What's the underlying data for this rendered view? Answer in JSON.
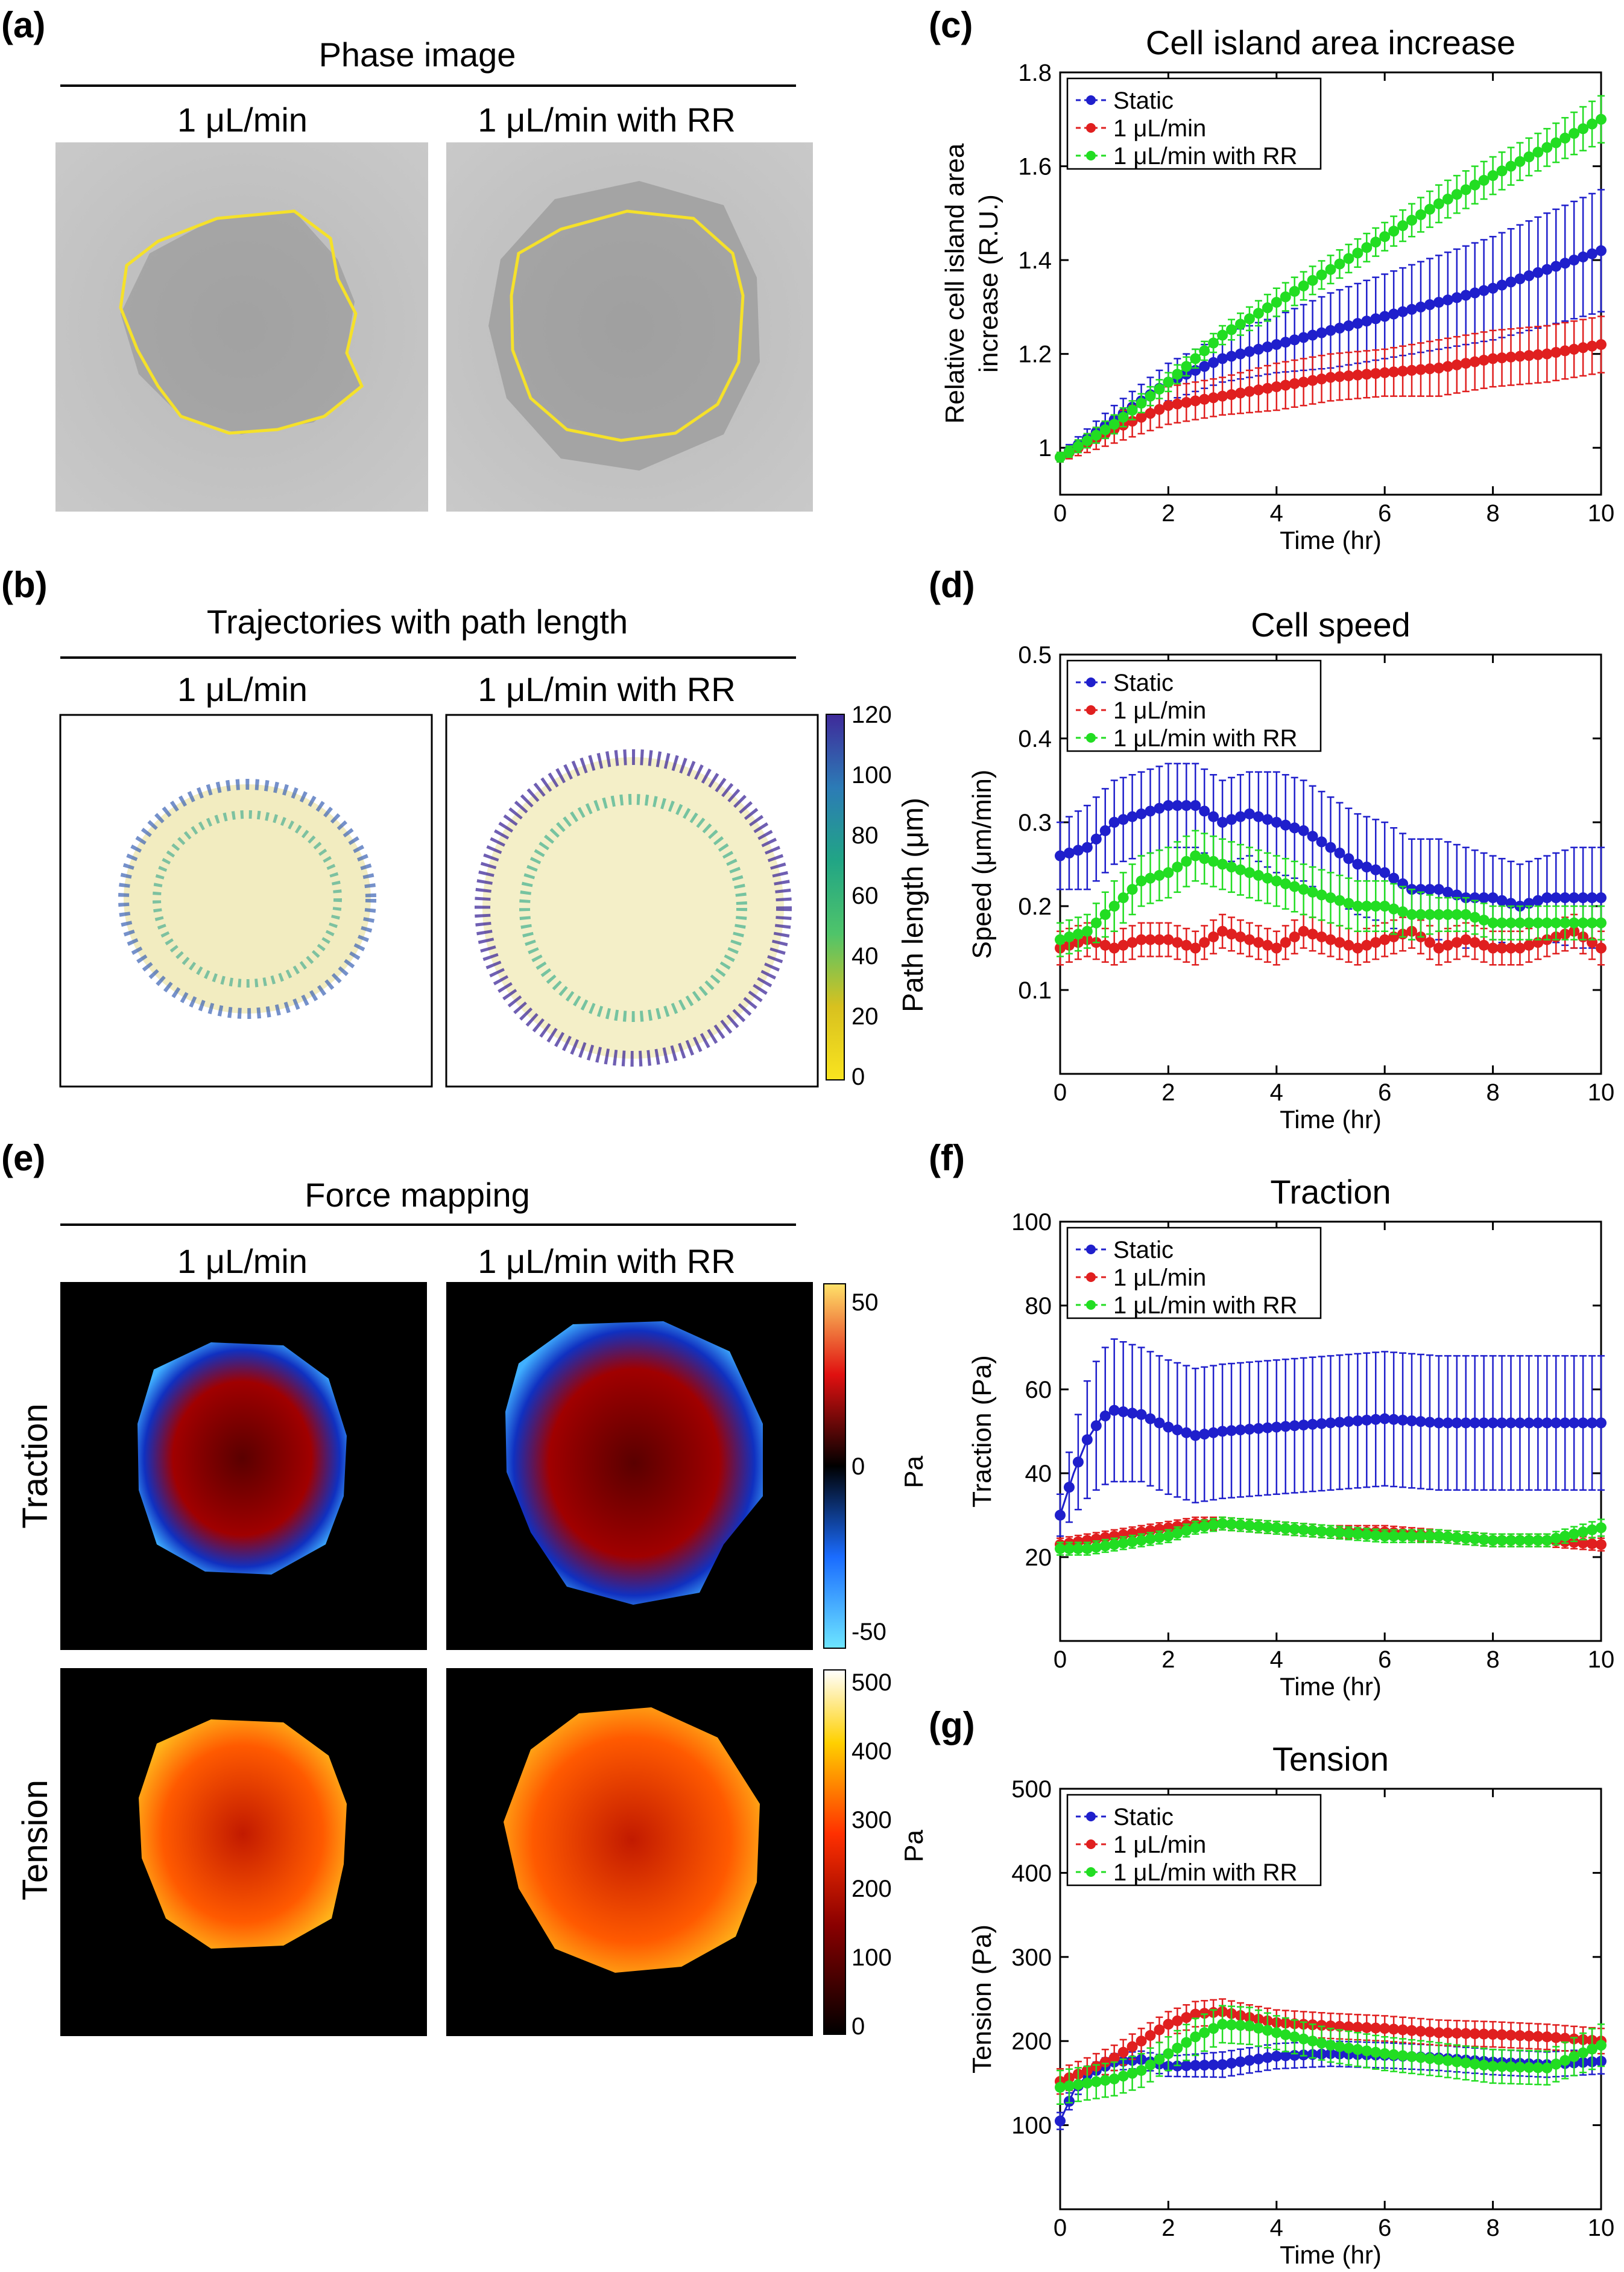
{
  "figure": {
    "panel_labels": {
      "a": "(a)",
      "b": "(b)",
      "c": "(c)",
      "d": "(d)",
      "e": "(e)",
      "f": "(f)",
      "g": "(g)"
    },
    "a": {
      "title": "Phase image",
      "col_left": "1 μL/min",
      "col_right": "1 μL/min with RR"
    },
    "b": {
      "title": "Trajectories with path length",
      "col_left": "1 μL/min",
      "col_right": "1 μL/min with RR",
      "colorbar_label": "Path length (μm)",
      "colorbar_ticks": [
        "120",
        "100",
        "80",
        "60",
        "40",
        "20",
        "0"
      ]
    },
    "e": {
      "title": "Force mapping",
      "col_left": "1 μL/min",
      "col_right": "1 μL/min with RR",
      "row_traction": "Traction",
      "row_tension": "Tension",
      "traction_cb_ticks": [
        "50",
        "0",
        "-50"
      ],
      "traction_cb_unit": "Pa",
      "tension_cb_ticks": [
        "500",
        "400",
        "300",
        "200",
        "100",
        "0"
      ],
      "tension_cb_unit": "Pa"
    }
  },
  "colors": {
    "static": "#1f1fcc",
    "flow": "#e01f1f",
    "rr": "#22dd22",
    "contour": "#f5e12a"
  },
  "legend_labels": [
    "Static",
    "1 μL/min",
    "1 μL/min with RR"
  ],
  "chart_data": [
    {
      "id": "c",
      "type": "line",
      "title": "Cell island area increase",
      "xlabel": "Time (hr)",
      "ylabel": [
        "Relative cell island area",
        "increase (R.U.)"
      ],
      "xlim": [
        0,
        10
      ],
      "ylim": [
        0.9,
        1.8
      ],
      "yticks": [
        1,
        1.2,
        1.4,
        1.6,
        1.8
      ],
      "ytick_labels": [
        "1",
        "1.2",
        "1.4",
        "1.6",
        "1.8"
      ],
      "xticks": [
        0,
        2,
        4,
        6,
        8,
        10
      ],
      "legend": "top-left",
      "series": [
        {
          "name": "Static",
          "x": [
            0,
            1,
            2,
            3,
            4,
            5,
            6,
            7,
            8,
            9,
            10
          ],
          "y": [
            0.98,
            1.06,
            1.14,
            1.19,
            1.22,
            1.25,
            1.28,
            1.31,
            1.34,
            1.38,
            1.42
          ],
          "err": [
            0.01,
            0.03,
            0.04,
            0.05,
            0.06,
            0.08,
            0.09,
            0.1,
            0.11,
            0.12,
            0.13
          ]
        },
        {
          "name": "1 μL/min",
          "x": [
            0,
            1,
            2,
            3,
            4,
            5,
            6,
            7,
            8,
            9,
            10
          ],
          "y": [
            0.98,
            1.04,
            1.09,
            1.11,
            1.13,
            1.15,
            1.16,
            1.17,
            1.19,
            1.2,
            1.22
          ],
          "err": [
            0.01,
            0.03,
            0.04,
            0.04,
            0.05,
            0.05,
            0.05,
            0.06,
            0.06,
            0.06,
            0.06
          ]
        },
        {
          "name": "1 μL/min with RR",
          "x": [
            0,
            1,
            2,
            3,
            4,
            5,
            6,
            7,
            8,
            9,
            10
          ],
          "y": [
            0.98,
            1.05,
            1.14,
            1.24,
            1.31,
            1.38,
            1.45,
            1.52,
            1.58,
            1.64,
            1.7
          ],
          "err": [
            0.01,
            0.02,
            0.02,
            0.02,
            0.03,
            0.03,
            0.03,
            0.04,
            0.04,
            0.04,
            0.05
          ]
        }
      ]
    },
    {
      "id": "d",
      "type": "line",
      "title": "Cell speed",
      "xlabel": "Time (hr)",
      "ylabel": [
        "Speed (μm/min)"
      ],
      "xlim": [
        0,
        10
      ],
      "ylim": [
        0,
        0.5
      ],
      "yticks": [
        0.1,
        0.2,
        0.3,
        0.4,
        0.5
      ],
      "ytick_labels": [
        "0.1",
        "0.2",
        "0.3",
        "0.4",
        "0.5"
      ],
      "xticks": [
        0,
        2,
        4,
        6,
        8,
        10
      ],
      "legend": "top-left",
      "series": [
        {
          "name": "Static",
          "x": [
            0,
            0.5,
            1,
            1.5,
            2,
            2.5,
            3,
            3.5,
            4,
            4.5,
            5,
            5.5,
            6,
            6.5,
            7,
            7.5,
            8,
            8.5,
            9,
            9.5,
            10
          ],
          "y": [
            0.26,
            0.27,
            0.3,
            0.31,
            0.32,
            0.32,
            0.3,
            0.31,
            0.3,
            0.29,
            0.27,
            0.25,
            0.24,
            0.22,
            0.22,
            0.21,
            0.21,
            0.2,
            0.21,
            0.21,
            0.21
          ],
          "err": [
            0.04,
            0.05,
            0.05,
            0.05,
            0.05,
            0.05,
            0.05,
            0.05,
            0.06,
            0.06,
            0.06,
            0.06,
            0.06,
            0.06,
            0.06,
            0.06,
            0.05,
            0.05,
            0.05,
            0.06,
            0.06
          ]
        },
        {
          "name": "1 μL/min",
          "x": [
            0,
            0.5,
            1,
            1.5,
            2,
            2.5,
            3,
            3.5,
            4,
            4.5,
            5,
            5.5,
            6,
            6.5,
            7,
            7.5,
            8,
            8.5,
            9,
            9.5,
            10
          ],
          "y": [
            0.15,
            0.16,
            0.15,
            0.16,
            0.16,
            0.15,
            0.17,
            0.16,
            0.15,
            0.17,
            0.16,
            0.15,
            0.16,
            0.17,
            0.15,
            0.16,
            0.15,
            0.15,
            0.16,
            0.17,
            0.15
          ],
          "err": [
            0.02,
            0.02,
            0.02,
            0.02,
            0.02,
            0.02,
            0.02,
            0.02,
            0.02,
            0.02,
            0.02,
            0.02,
            0.02,
            0.02,
            0.02,
            0.02,
            0.02,
            0.02,
            0.02,
            0.02,
            0.02
          ]
        },
        {
          "name": "1 μL/min with RR",
          "x": [
            0,
            0.5,
            1,
            1.5,
            2,
            2.5,
            3,
            3.5,
            4,
            4.5,
            5,
            5.5,
            6,
            6.5,
            7,
            7.5,
            8,
            8.5,
            9,
            9.5,
            10
          ],
          "y": [
            0.16,
            0.17,
            0.2,
            0.23,
            0.24,
            0.26,
            0.25,
            0.24,
            0.23,
            0.22,
            0.21,
            0.2,
            0.2,
            0.19,
            0.19,
            0.19,
            0.18,
            0.18,
            0.18,
            0.18,
            0.18
          ],
          "err": [
            0.02,
            0.02,
            0.03,
            0.03,
            0.03,
            0.03,
            0.03,
            0.03,
            0.03,
            0.03,
            0.03,
            0.03,
            0.03,
            0.03,
            0.02,
            0.02,
            0.02,
            0.02,
            0.02,
            0.02,
            0.02
          ]
        }
      ]
    },
    {
      "id": "f",
      "type": "line",
      "title": "Traction",
      "xlabel": "Time (hr)",
      "ylabel": [
        "Traction (Pa)"
      ],
      "xlim": [
        0,
        10
      ],
      "ylim": [
        0,
        100
      ],
      "yticks": [
        20,
        40,
        60,
        80,
        100
      ],
      "ytick_labels": [
        "20",
        "40",
        "60",
        "80",
        "100"
      ],
      "xticks": [
        0,
        2,
        4,
        6,
        8,
        10
      ],
      "legend": "top-left",
      "series": [
        {
          "name": "Static",
          "x": [
            0,
            0.25,
            0.5,
            0.75,
            1,
            1.5,
            2,
            2.5,
            3,
            4,
            5,
            6,
            7,
            8,
            9,
            10
          ],
          "y": [
            30,
            40,
            48,
            53,
            55,
            54,
            51,
            49,
            50,
            51,
            52,
            53,
            52,
            52,
            52,
            52
          ],
          "err": [
            5,
            10,
            14,
            16,
            17,
            16,
            16,
            16,
            16,
            16,
            16,
            16,
            16,
            16,
            16,
            16
          ]
        },
        {
          "name": "1 μL/min",
          "x": [
            0,
            0.5,
            1,
            1.5,
            2,
            2.5,
            3,
            4,
            5,
            6,
            7,
            8,
            9,
            10
          ],
          "y": [
            23,
            24,
            25,
            26,
            27,
            28,
            28,
            27,
            26,
            26,
            25,
            24,
            24,
            23
          ],
          "err": [
            1.5,
            1.5,
            1.5,
            1.5,
            1.5,
            1.5,
            1.5,
            1.5,
            1.5,
            1.5,
            1.5,
            1.5,
            1.5,
            1.5
          ]
        },
        {
          "name": "1 μL/min with RR",
          "x": [
            0,
            0.5,
            1,
            1.5,
            2,
            2.5,
            3,
            4,
            5,
            6,
            7,
            8,
            9,
            10
          ],
          "y": [
            22,
            22,
            23,
            24,
            25,
            27,
            28,
            27,
            26,
            25,
            25,
            24,
            24,
            27
          ],
          "err": [
            1.5,
            1.5,
            1.5,
            1.5,
            1.5,
            1.5,
            1.5,
            1.5,
            1.5,
            1.5,
            1.5,
            1.5,
            1.5,
            2
          ]
        }
      ]
    },
    {
      "id": "g",
      "type": "line",
      "title": "Tension",
      "xlabel": "Time (hr)",
      "ylabel": [
        "Tension (Pa)"
      ],
      "xlim": [
        0,
        10
      ],
      "ylim": [
        0,
        500
      ],
      "yticks": [
        100,
        200,
        300,
        400,
        500
      ],
      "ytick_labels": [
        "100",
        "200",
        "300",
        "400",
        "500"
      ],
      "xticks": [
        0,
        2,
        4,
        6,
        8,
        10
      ],
      "legend": "top-left",
      "series": [
        {
          "name": "Static",
          "x": [
            0,
            0.25,
            0.5,
            1,
            1.5,
            2,
            3,
            4,
            5,
            6,
            7,
            8,
            9,
            10
          ],
          "y": [
            105,
            140,
            160,
            175,
            178,
            170,
            172,
            182,
            185,
            183,
            180,
            175,
            172,
            176
          ],
          "err": [
            10,
            10,
            10,
            10,
            10,
            12,
            15,
            15,
            15,
            15,
            15,
            15,
            15,
            15
          ]
        },
        {
          "name": "1 μL/min",
          "x": [
            0,
            0.5,
            1,
            1.5,
            2,
            2.5,
            3,
            3.5,
            4,
            5,
            6,
            7,
            8,
            9,
            10
          ],
          "y": [
            152,
            165,
            180,
            200,
            220,
            232,
            235,
            228,
            222,
            218,
            215,
            210,
            208,
            205,
            200
          ],
          "err": [
            15,
            15,
            15,
            15,
            15,
            15,
            15,
            15,
            15,
            15,
            15,
            15,
            15,
            15,
            15
          ]
        },
        {
          "name": "1 μL/min with RR",
          "x": [
            0,
            0.5,
            1,
            1.5,
            2,
            2.5,
            3,
            3.5,
            4,
            5,
            6,
            7,
            8,
            9,
            10
          ],
          "y": [
            145,
            150,
            155,
            165,
            185,
            205,
            220,
            218,
            210,
            195,
            185,
            178,
            170,
            168,
            195
          ],
          "err": [
            20,
            20,
            20,
            20,
            20,
            22,
            22,
            22,
            20,
            20,
            20,
            20,
            20,
            20,
            25
          ]
        }
      ]
    }
  ]
}
